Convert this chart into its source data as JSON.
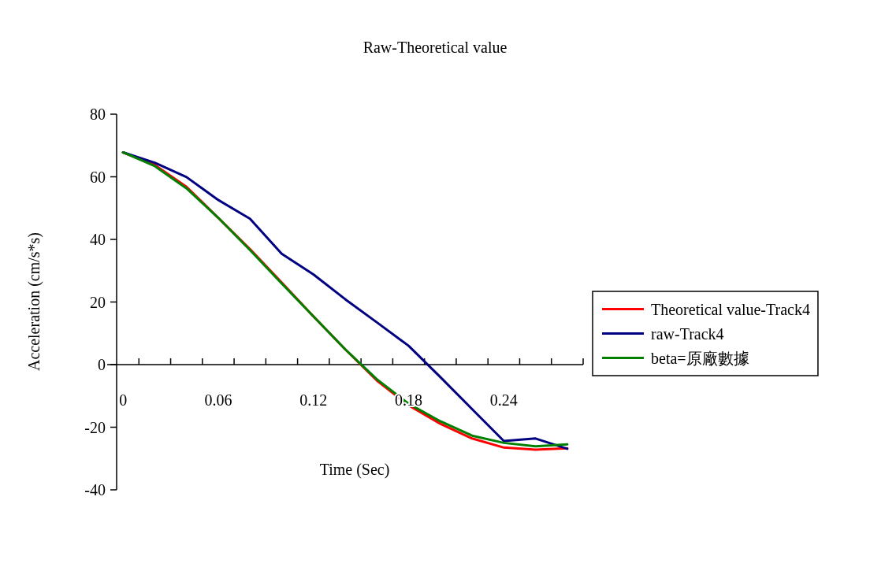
{
  "chart_data": {
    "type": "line",
    "title": "Raw-Theoretical value",
    "xlabel": "Time (Sec)",
    "ylabel": "Acceleration (cm/s*s)",
    "categories": [
      "0",
      null,
      null,
      "0.06",
      null,
      null,
      "0.12",
      null,
      null,
      "0.18",
      null,
      null,
      "0.24",
      null,
      null
    ],
    "series": [
      {
        "name": "Theoretical value-Track4",
        "color": "#ff0000",
        "values": [
          67.8,
          63.8,
          56.8,
          46.9,
          36.9,
          26.2,
          15.4,
          4.9,
          -5.1,
          -13,
          -18.9,
          -23.6,
          -26.5,
          -27.2,
          -26.7
        ]
      },
      {
        "name": "raw-Track4",
        "color": "#000080",
        "values": [
          67.8,
          64.5,
          59.9,
          52.6,
          46.6,
          35.4,
          28.8,
          20.9,
          13.5,
          6,
          -4,
          -14.2,
          -24.4,
          -23.6,
          -26.9
        ]
      },
      {
        "name": "beta=原廠數據",
        "color": "#008000",
        "values": [
          67.8,
          63.4,
          56.3,
          46.9,
          36.6,
          25.9,
          15.4,
          4.9,
          -4.7,
          -12.5,
          -18.1,
          -22.7,
          -25,
          -26.1,
          -25.5
        ]
      }
    ],
    "ylim": [
      -40,
      80
    ],
    "yticks": [
      -40,
      -20,
      0,
      20,
      40,
      60,
      80
    ],
    "grid": false,
    "legend": "right",
    "marker": "none",
    "line_style": "solid"
  }
}
